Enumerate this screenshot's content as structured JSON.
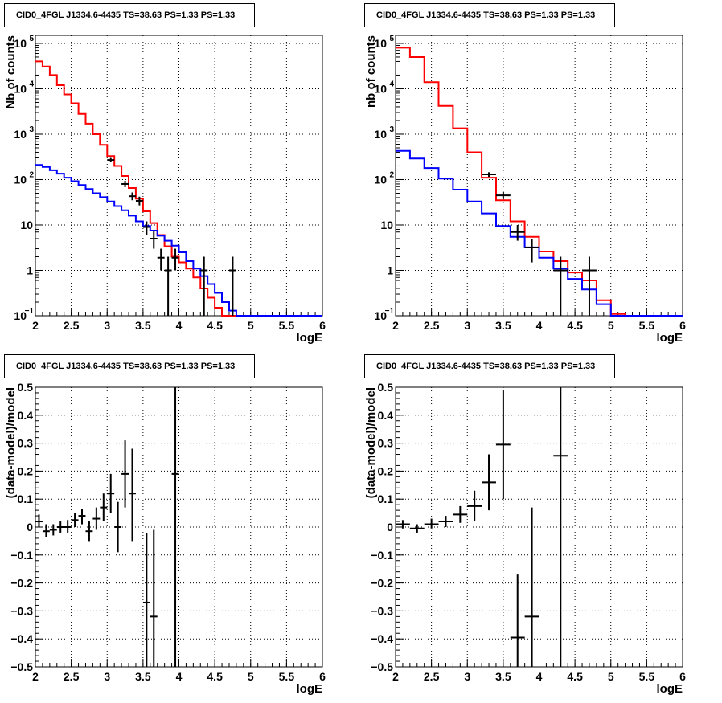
{
  "chart_data": [
    {
      "id": "tl",
      "type": "histogram",
      "title": "CID0_4FGL J1334.6-4435 TS=38.63 PS=1.33 PS=1.33",
      "xlabel": "logE",
      "ylabel": "Nb of counts",
      "log_y": true,
      "xlim": [
        2,
        6
      ],
      "ylim": [
        0.1,
        150000
      ],
      "xticks": [
        "2",
        "2.5",
        "3",
        "3.5",
        "4",
        "4.5",
        "5",
        "5.5",
        "6"
      ],
      "yticks": [
        {
          "v": 0.1,
          "label": "10",
          "sup": "−1"
        },
        {
          "v": 1,
          "label": "1",
          "sup": ""
        },
        {
          "v": 10,
          "label": "10",
          "sup": ""
        },
        {
          "v": 100,
          "label": "10",
          "sup": "2"
        },
        {
          "v": 1000,
          "label": "10",
          "sup": "3"
        },
        {
          "v": 10000,
          "label": "10",
          "sup": "4"
        },
        {
          "v": 100000,
          "label": "10",
          "sup": "5"
        }
      ],
      "grid": true,
      "bin_edges": [
        2.0,
        2.1,
        2.2,
        2.3,
        2.4,
        2.5,
        2.6,
        2.7,
        2.8,
        2.9,
        3.0,
        3.1,
        3.2,
        3.3,
        3.4,
        3.5,
        3.6,
        3.7,
        3.8,
        3.9,
        4.0,
        4.1,
        4.2,
        4.3,
        4.4,
        4.5,
        4.6,
        4.7,
        4.8,
        4.9,
        5.0,
        5.1,
        5.2,
        5.3,
        5.4,
        5.5,
        5.6,
        5.7,
        5.8,
        5.9,
        6.0
      ],
      "series": [
        {
          "color": "#ff0000",
          "values": [
            40000,
            31000,
            20000,
            12000,
            7500,
            4800,
            2800,
            1700,
            1000,
            580,
            330,
            200,
            120,
            65,
            38,
            20,
            11,
            6,
            3.4,
            2,
            1.5,
            1.1,
            0.7,
            0.4,
            0.25,
            0.15,
            0.1,
            0.1,
            0.1,
            0.1,
            0.1,
            0.1,
            0.1,
            0.1,
            0.1,
            0.1,
            0.1,
            0.1,
            0.1,
            0.1
          ]
        },
        {
          "color": "#0000ff",
          "values": [
            210,
            190,
            160,
            135,
            110,
            92,
            76,
            62,
            50,
            41,
            33,
            26,
            21,
            16,
            12,
            9.5,
            7.5,
            5.8,
            4.5,
            3.5,
            2.5,
            1.6,
            1.1,
            0.75,
            0.5,
            0.32,
            0.2,
            0.13,
            0.1,
            0.1,
            0.1,
            0.1,
            0.1,
            0.1,
            0.1,
            0.1,
            0.1,
            0.1,
            0.1,
            0.1
          ]
        }
      ],
      "points": [
        {
          "x": 3.05,
          "y": 270,
          "xerr": 0.05,
          "ylo": 240,
          "yhi": 300
        },
        {
          "x": 3.25,
          "y": 80,
          "xerr": 0.05,
          "ylo": 68,
          "yhi": 94
        },
        {
          "x": 3.35,
          "y": 43,
          "xerr": 0.05,
          "ylo": 35,
          "yhi": 52
        },
        {
          "x": 3.45,
          "y": 34,
          "xerr": 0.05,
          "ylo": 27,
          "yhi": 42
        },
        {
          "x": 3.55,
          "y": 9,
          "xerr": 0.05,
          "ylo": 6,
          "yhi": 12
        },
        {
          "x": 3.65,
          "y": 5,
          "xerr": 0.05,
          "ylo": 3,
          "yhi": 7.5
        },
        {
          "x": 3.75,
          "y": 1.9,
          "xerr": 0.05,
          "ylo": 1,
          "yhi": 3
        },
        {
          "x": 3.85,
          "y": 1,
          "xerr": 0.05,
          "ylo": 0.1,
          "yhi": 2
        },
        {
          "x": 3.95,
          "y": 1.9,
          "xerr": 0.05,
          "ylo": 1,
          "yhi": 3
        },
        {
          "x": 4.35,
          "y": 1,
          "xerr": 0.05,
          "ylo": 0.1,
          "yhi": 2
        },
        {
          "x": 4.75,
          "y": 1,
          "xerr": 0.05,
          "ylo": 0.1,
          "yhi": 2
        }
      ]
    },
    {
      "id": "tr",
      "type": "histogram",
      "title": "CID0_4FGL J1334.6-4435 TS=38.63 PS=1.33 PS=1.33",
      "xlabel": "logE",
      "ylabel": "nb of counts",
      "log_y": true,
      "xlim": [
        2,
        6
      ],
      "ylim": [
        0.1,
        150000
      ],
      "xticks": [
        "2",
        "2.5",
        "3",
        "3.5",
        "4",
        "4.5",
        "5",
        "5.5",
        "6"
      ],
      "yticks": [
        {
          "v": 0.1,
          "label": "10",
          "sup": "−1"
        },
        {
          "v": 1,
          "label": "1",
          "sup": ""
        },
        {
          "v": 10,
          "label": "10",
          "sup": ""
        },
        {
          "v": 100,
          "label": "10",
          "sup": "2"
        },
        {
          "v": 1000,
          "label": "10",
          "sup": "3"
        },
        {
          "v": 10000,
          "label": "10",
          "sup": "4"
        },
        {
          "v": 100000,
          "label": "10",
          "sup": "5"
        }
      ],
      "grid": true,
      "bin_edges": [
        2.0,
        2.2,
        2.4,
        2.6,
        2.8,
        3.0,
        3.2,
        3.4,
        3.6,
        3.8,
        4.0,
        4.2,
        4.4,
        4.6,
        4.8,
        5.0,
        5.2,
        5.4,
        5.6,
        5.8,
        6.0
      ],
      "series": [
        {
          "color": "#ff0000",
          "values": [
            80000,
            50000,
            14000,
            4200,
            1350,
            400,
            110,
            35,
            12,
            5.5,
            2.6,
            1.6,
            0.9,
            0.6,
            0.22,
            0.11,
            0.1,
            0.1,
            0.1,
            0.1
          ]
        },
        {
          "color": "#0000ff",
          "values": [
            430,
            290,
            180,
            105,
            60,
            33,
            18,
            9.5,
            5.5,
            3.2,
            1.9,
            1.1,
            0.65,
            0.38,
            0.18,
            0.1,
            0.1,
            0.1,
            0.1,
            0.1
          ]
        }
      ],
      "points": [
        {
          "x": 3.3,
          "y": 130,
          "xerr": 0.1,
          "ylo": 115,
          "yhi": 145
        },
        {
          "x": 3.5,
          "y": 45,
          "xerr": 0.1,
          "ylo": 37,
          "yhi": 54
        },
        {
          "x": 3.7,
          "y": 7,
          "xerr": 0.1,
          "ylo": 4.5,
          "yhi": 10
        },
        {
          "x": 3.9,
          "y": 3.2,
          "xerr": 0.1,
          "ylo": 1.5,
          "yhi": 5
        },
        {
          "x": 4.3,
          "y": 1,
          "xerr": 0.1,
          "ylo": 0.1,
          "yhi": 2
        },
        {
          "x": 4.7,
          "y": 1,
          "xerr": 0.1,
          "ylo": 0.1,
          "yhi": 2
        }
      ]
    },
    {
      "id": "bl",
      "type": "scatter",
      "title": "CID0_4FGL J1334.6-4435 TS=38.63 PS=1.33 PS=1.33",
      "xlabel": "logE",
      "ylabel": "(data-model)/model",
      "log_y": false,
      "xlim": [
        2,
        6
      ],
      "ylim": [
        -0.5,
        0.5
      ],
      "xticks": [
        "2",
        "2.5",
        "3",
        "3.5",
        "4",
        "4.5",
        "5",
        "5.5",
        "6"
      ],
      "yticks": [
        {
          "v": -0.5,
          "label": "−0.5"
        },
        {
          "v": -0.4,
          "label": "−0.4"
        },
        {
          "v": -0.3,
          "label": "−0.3"
        },
        {
          "v": -0.2,
          "label": "−0.2"
        },
        {
          "v": -0.1,
          "label": "−0.1"
        },
        {
          "v": 0,
          "label": "0"
        },
        {
          "v": 0.1,
          "label": "0.1"
        },
        {
          "v": 0.2,
          "label": "0.2"
        },
        {
          "v": 0.3,
          "label": "0.3"
        },
        {
          "v": 0.4,
          "label": "0.4"
        },
        {
          "v": 0.5,
          "label": "0.5"
        }
      ],
      "grid": true,
      "points": [
        {
          "x": 2.05,
          "y": 0.02,
          "xerr": 0.05,
          "ylo": 0.0,
          "yhi": 0.045
        },
        {
          "x": 2.15,
          "y": -0.015,
          "xerr": 0.05,
          "ylo": -0.035,
          "yhi": 0.01
        },
        {
          "x": 2.25,
          "y": -0.01,
          "xerr": 0.05,
          "ylo": -0.03,
          "yhi": 0.01
        },
        {
          "x": 2.35,
          "y": 0.0,
          "xerr": 0.05,
          "ylo": -0.02,
          "yhi": 0.02
        },
        {
          "x": 2.45,
          "y": 0.0,
          "xerr": 0.05,
          "ylo": -0.02,
          "yhi": 0.025
        },
        {
          "x": 2.55,
          "y": 0.025,
          "xerr": 0.05,
          "ylo": 0.0,
          "yhi": 0.05
        },
        {
          "x": 2.65,
          "y": 0.04,
          "xerr": 0.05,
          "ylo": 0.01,
          "yhi": 0.065
        },
        {
          "x": 2.75,
          "y": -0.015,
          "xerr": 0.05,
          "ylo": -0.05,
          "yhi": 0.02
        },
        {
          "x": 2.85,
          "y": 0.03,
          "xerr": 0.05,
          "ylo": -0.01,
          "yhi": 0.07
        },
        {
          "x": 2.95,
          "y": 0.07,
          "xerr": 0.05,
          "ylo": 0.02,
          "yhi": 0.12
        },
        {
          "x": 3.05,
          "y": 0.12,
          "xerr": 0.05,
          "ylo": 0.05,
          "yhi": 0.19
        },
        {
          "x": 3.15,
          "y": 0.0,
          "xerr": 0.05,
          "ylo": -0.09,
          "yhi": 0.09
        },
        {
          "x": 3.25,
          "y": 0.19,
          "xerr": 0.05,
          "ylo": 0.07,
          "yhi": 0.31
        },
        {
          "x": 3.35,
          "y": 0.12,
          "xerr": 0.05,
          "ylo": -0.05,
          "yhi": 0.28
        },
        {
          "x": 3.55,
          "y": -0.27,
          "xerr": 0.05,
          "ylo": -0.5,
          "yhi": -0.02
        },
        {
          "x": 3.65,
          "y": -0.32,
          "xerr": 0.05,
          "ylo": -0.5,
          "yhi": -0.01
        },
        {
          "x": 3.95,
          "y": 0.19,
          "xerr": 0.05,
          "ylo": -0.5,
          "yhi": 0.5
        }
      ]
    },
    {
      "id": "br",
      "type": "scatter",
      "title": "CID0_4FGL J1334.6-4435 TS=38.63 PS=1.33 PS=1.33",
      "xlabel": "logE",
      "ylabel": "(data-model)/model",
      "log_y": false,
      "xlim": [
        2,
        6
      ],
      "ylim": [
        -0.5,
        0.5
      ],
      "xticks": [
        "2",
        "2.5",
        "3",
        "3.5",
        "4",
        "4.5",
        "5",
        "5.5",
        "6"
      ],
      "yticks": [
        {
          "v": -0.5,
          "label": "−0.5"
        },
        {
          "v": -0.4,
          "label": "−0.4"
        },
        {
          "v": -0.3,
          "label": "−0.3"
        },
        {
          "v": -0.2,
          "label": "−0.2"
        },
        {
          "v": -0.1,
          "label": "−0.1"
        },
        {
          "v": 0,
          "label": "0"
        },
        {
          "v": 0.1,
          "label": "0.1"
        },
        {
          "v": 0.2,
          "label": "0.2"
        },
        {
          "v": 0.3,
          "label": "0.3"
        },
        {
          "v": 0.4,
          "label": "0.4"
        },
        {
          "v": 0.5,
          "label": "0.5"
        }
      ],
      "grid": true,
      "points": [
        {
          "x": 2.1,
          "y": 0.01,
          "xerr": 0.1,
          "ylo": -0.005,
          "yhi": 0.025
        },
        {
          "x": 2.3,
          "y": -0.005,
          "xerr": 0.1,
          "ylo": -0.02,
          "yhi": 0.01
        },
        {
          "x": 2.5,
          "y": 0.01,
          "xerr": 0.1,
          "ylo": -0.005,
          "yhi": 0.03
        },
        {
          "x": 2.7,
          "y": 0.02,
          "xerr": 0.1,
          "ylo": 0.0,
          "yhi": 0.04
        },
        {
          "x": 2.9,
          "y": 0.045,
          "xerr": 0.1,
          "ylo": 0.015,
          "yhi": 0.075
        },
        {
          "x": 3.1,
          "y": 0.075,
          "xerr": 0.1,
          "ylo": 0.02,
          "yhi": 0.13
        },
        {
          "x": 3.3,
          "y": 0.16,
          "xerr": 0.1,
          "ylo": 0.06,
          "yhi": 0.26
        },
        {
          "x": 3.5,
          "y": 0.295,
          "xerr": 0.1,
          "ylo": 0.1,
          "yhi": 0.49
        },
        {
          "x": 3.7,
          "y": -0.395,
          "xerr": 0.1,
          "ylo": -0.5,
          "yhi": -0.17
        },
        {
          "x": 3.9,
          "y": -0.32,
          "xerr": 0.1,
          "ylo": -0.5,
          "yhi": 0.07
        },
        {
          "x": 4.3,
          "y": 0.255,
          "xerr": 0.1,
          "ylo": -0.5,
          "yhi": 0.5
        }
      ]
    }
  ]
}
